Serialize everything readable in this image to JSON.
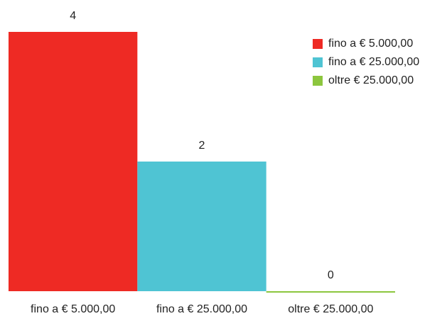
{
  "chart_data": {
    "type": "bar",
    "categories": [
      "fino a € 5.000,00",
      "fino a € 25.000,00",
      "oltre € 25.000,00"
    ],
    "values": [
      4,
      2,
      0
    ],
    "colors": [
      "#ee2a24",
      "#4fc4d3",
      "#8cc63e"
    ],
    "ylim": [
      0,
      4
    ],
    "legend": "top-right"
  }
}
